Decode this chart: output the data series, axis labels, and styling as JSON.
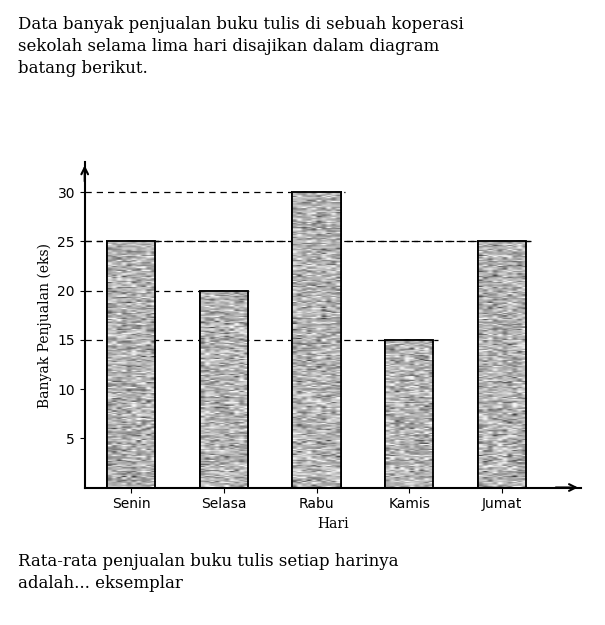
{
  "title_text": "Data banyak penjualan buku tulis di sebuah koperasi\nsekolah selama lima hari disajikan dalam diagram\nbatang berikut.",
  "footer_text": "Rata-rata penjualan buku tulis setiap harinya\nadalah... eksemplar",
  "categories": [
    "Senin",
    "Selasa",
    "Rabu",
    "Kamis",
    "Jumat"
  ],
  "values": [
    25,
    20,
    30,
    15,
    25
  ],
  "xlabel": "Hari",
  "ylabel": "Banyak Penjualan (eks)",
  "yticks": [
    5,
    10,
    15,
    20,
    25,
    30
  ],
  "ylim": [
    0,
    33
  ],
  "bar_color": "#c8c8c8",
  "bar_edgecolor": "#000000",
  "background_color": "#ffffff",
  "title_fontsize": 12,
  "footer_fontsize": 12,
  "axis_label_fontsize": 10,
  "tick_fontsize": 9.5
}
